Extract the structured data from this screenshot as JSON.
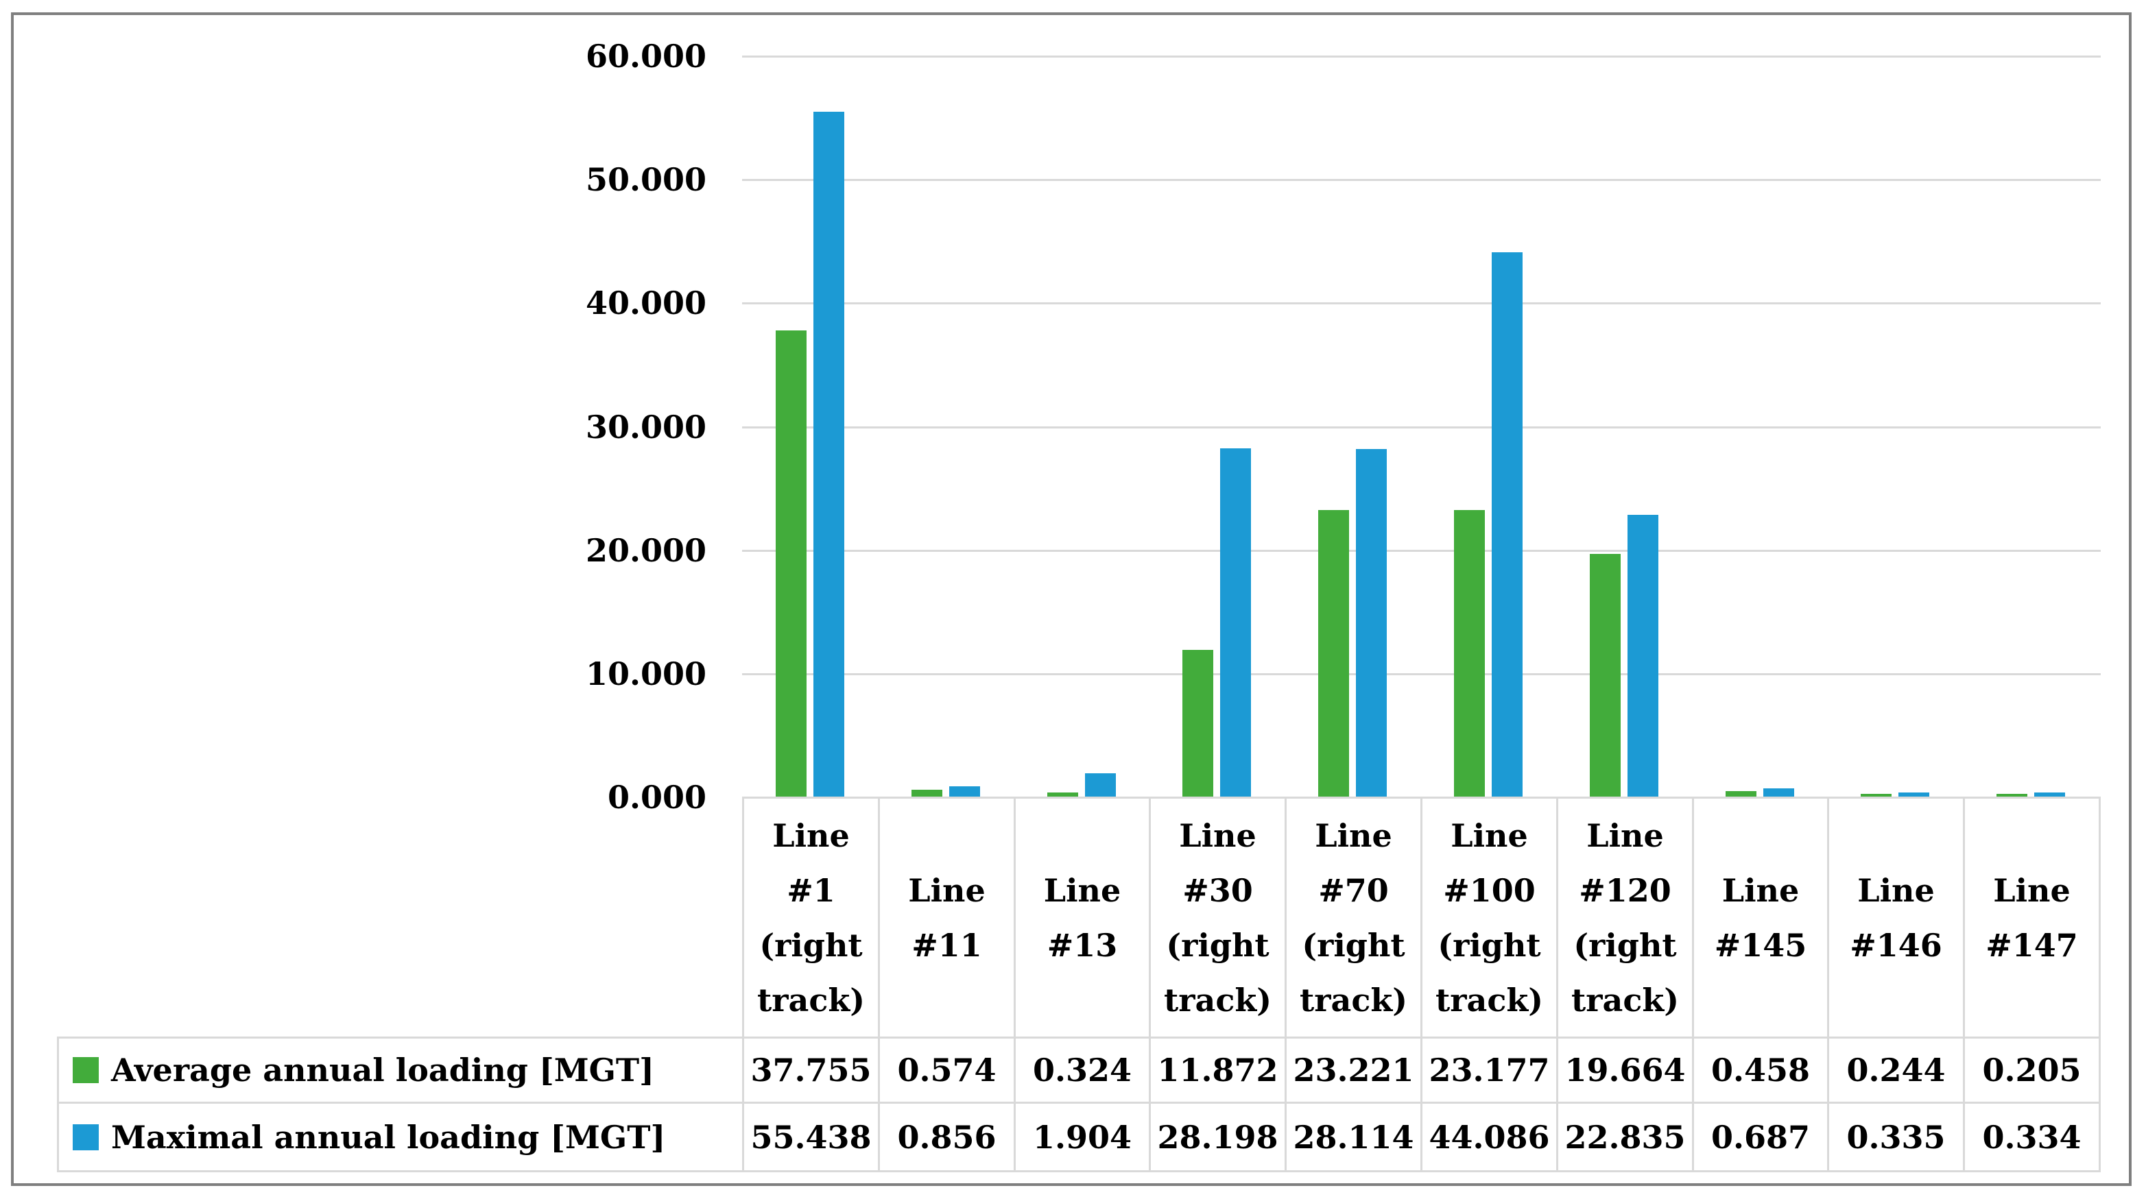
{
  "chart_data": {
    "type": "bar",
    "categories": [
      "Line #1 (right track)",
      "Line #11",
      "Line #13",
      "Line #30 (right track)",
      "Line #70 (right track)",
      "Line #100 (right track)",
      "Line #120 (right track)",
      "Line #145",
      "Line #146",
      "Line #147"
    ],
    "series": [
      {
        "name": "Average annual loading [MGT]",
        "color": "#42ac3b",
        "values": [
          37.755,
          0.574,
          0.324,
          11.872,
          23.221,
          23.177,
          19.664,
          0.458,
          0.244,
          0.205
        ]
      },
      {
        "name": "Maximal annual loading [MGT]",
        "color": "#1c9ad4",
        "values": [
          55.438,
          0.856,
          1.904,
          28.198,
          28.114,
          44.086,
          22.835,
          0.687,
          0.335,
          0.334
        ]
      }
    ],
    "title": "",
    "xlabel": "",
    "ylabel": "",
    "ylim": [
      0,
      60
    ],
    "ytick_step": 10,
    "ytick_labels": [
      "0.000",
      "10.000",
      "20.000",
      "30.000",
      "40.000",
      "50.000",
      "60.000"
    ],
    "value_decimals": 3,
    "grid": true,
    "legend_position": "table-left"
  },
  "colors": {
    "grid": "#d9d9d9",
    "table_border": "#d9d9d9",
    "frame_border": "#7f7f7f",
    "background": "#ffffff",
    "text": "#000000"
  }
}
